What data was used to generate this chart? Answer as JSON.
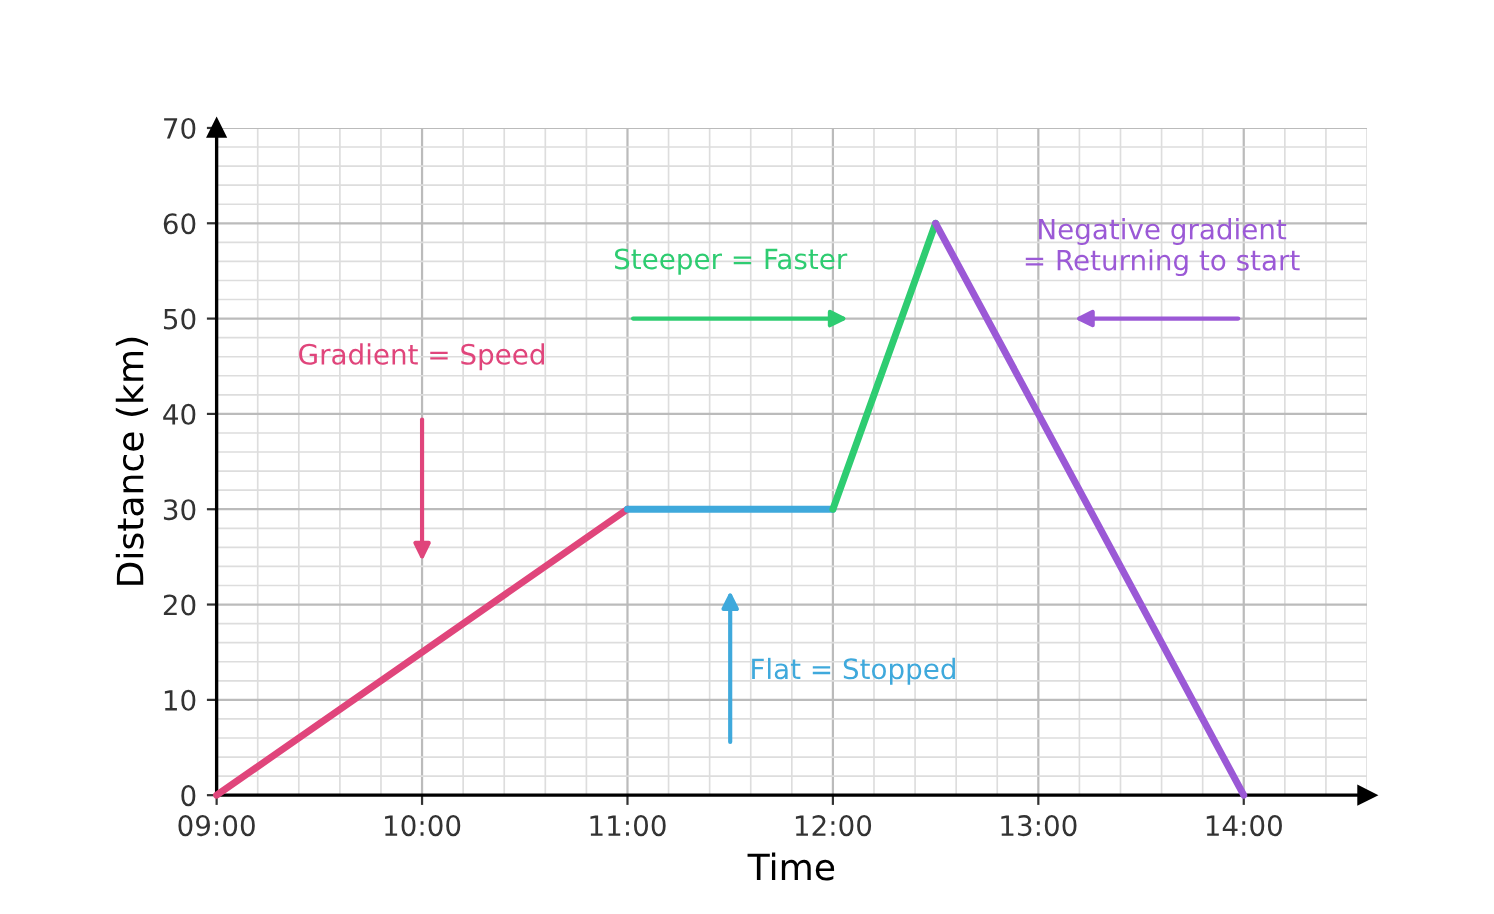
{
  "chart_data": {
    "type": "line",
    "xlabel": "Time",
    "ylabel": "Distance (km)",
    "series": [
      {
        "color": "#e0457b",
        "x": [
          9,
          11
        ],
        "values": [
          0,
          30
        ]
      },
      {
        "color": "#3fa9dc",
        "x": [
          11,
          12
        ],
        "values": [
          30,
          30
        ]
      },
      {
        "color": "#2ecc71",
        "x": [
          12,
          12.5
        ],
        "values": [
          30,
          60
        ]
      },
      {
        "color": "#9b59d6",
        "x": [
          12.5,
          14
        ],
        "values": [
          60,
          0
        ]
      }
    ],
    "xlim": [
      9,
      14.6
    ],
    "ylim": [
      0,
      70
    ],
    "xticks": [
      {
        "value": 9,
        "label": "09:00"
      },
      {
        "value": 10,
        "label": "10:00"
      },
      {
        "value": 11,
        "label": "11:00"
      },
      {
        "value": 12,
        "label": "12:00"
      },
      {
        "value": 13,
        "label": "13:00"
      },
      {
        "value": 14,
        "label": "14:00"
      }
    ],
    "yticks": [
      0,
      10,
      20,
      30,
      40,
      50,
      60,
      70
    ],
    "grid": true,
    "annotations": [
      "Gradient = Speed",
      "Flat = Stopped",
      "Steeper = Faster",
      "Negative gradient\n= Returning to start"
    ]
  }
}
